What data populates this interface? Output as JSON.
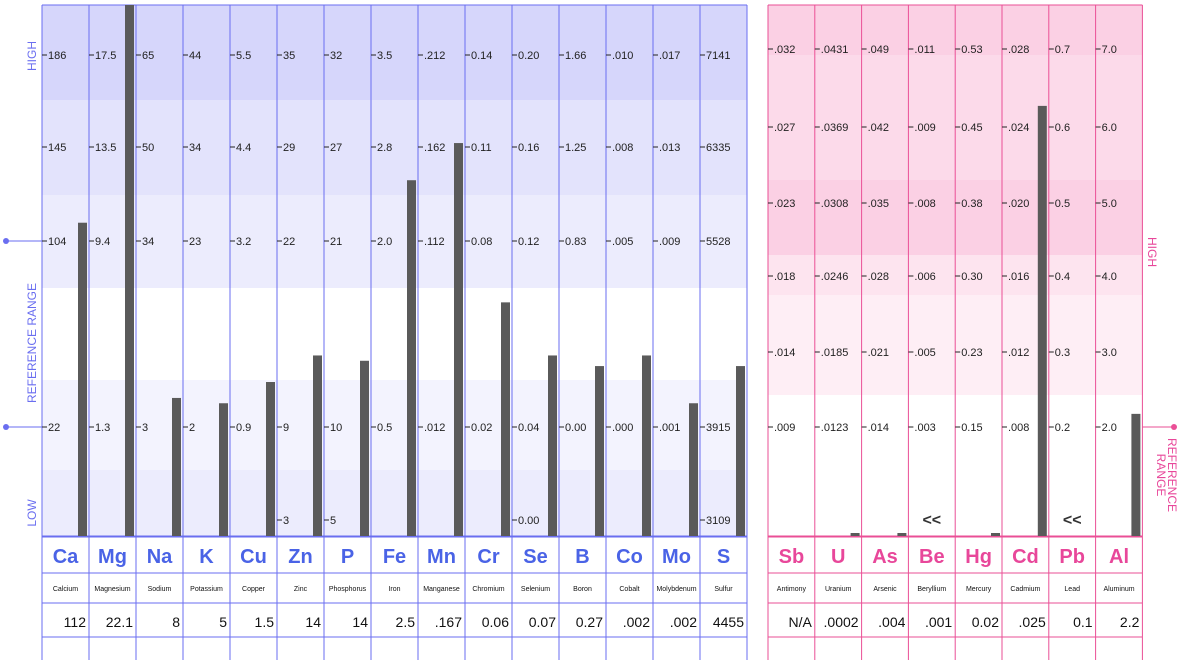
{
  "chart_data": [
    {
      "type": "bar",
      "group": "nutrient",
      "side_labels": {
        "high": "HIGH",
        "reference": "REFERENCE   RANGE",
        "low": "LOW"
      },
      "columns": [
        {
          "symbol": "Ca",
          "name": "Calcium",
          "value": "112",
          "ticks": [
            "186",
            "145",
            "104",
            "22"
          ],
          "level": 0.59
        },
        {
          "symbol": "Mg",
          "name": "Magnesium",
          "value": "22.1",
          "ticks": [
            "17.5",
            "13.5",
            "9.4",
            "1.3"
          ],
          "level": 1.0
        },
        {
          "symbol": "Na",
          "name": "Sodium",
          "value": "8",
          "ticks": [
            "65",
            "50",
            "34",
            "3"
          ],
          "level": 0.26
        },
        {
          "symbol": "K",
          "name": "Potassium",
          "value": "5",
          "ticks": [
            "44",
            "34",
            "23",
            "2"
          ],
          "level": 0.25
        },
        {
          "symbol": "Cu",
          "name": "Copper",
          "value": "1.5",
          "ticks": [
            "5.5",
            "4.4",
            "3.2",
            "0.9"
          ],
          "level": 0.29
        },
        {
          "symbol": "Zn",
          "name": "Zinc",
          "value": "14",
          "ticks": [
            "35",
            "29",
            "22",
            "9",
            "3"
          ],
          "level": 0.34
        },
        {
          "symbol": "P",
          "name": "Phosphorus",
          "value": "14",
          "ticks": [
            "32",
            "27",
            "21",
            "10",
            "5"
          ],
          "level": 0.33
        },
        {
          "symbol": "Fe",
          "name": "Iron",
          "value": "2.5",
          "ticks": [
            "3.5",
            "2.8",
            "2.0",
            "0.5"
          ],
          "level": 0.67
        },
        {
          "symbol": "Mn",
          "name": "Manganese",
          "value": ".167",
          "ticks": [
            ".212",
            ".162",
            ".112",
            ".012"
          ],
          "level": 0.74
        },
        {
          "symbol": "Cr",
          "name": "Chromium",
          "value": "0.06",
          "ticks": [
            "0.14",
            "0.11",
            "0.08",
            "0.02"
          ],
          "level": 0.44
        },
        {
          "symbol": "Se",
          "name": "Selenium",
          "value": "0.07",
          "ticks": [
            "0.20",
            "0.16",
            "0.12",
            "0.04",
            "0.00"
          ],
          "level": 0.34
        },
        {
          "symbol": "B",
          "name": "Boron",
          "value": "0.27",
          "ticks": [
            "1.66",
            "1.25",
            "0.83",
            "0.00"
          ],
          "level": 0.32
        },
        {
          "symbol": "Co",
          "name": "Cobalt",
          "value": ".002",
          "ticks": [
            ".010",
            ".008",
            ".005",
            ".000"
          ],
          "level": 0.34
        },
        {
          "symbol": "Mo",
          "name": "Molybdenum",
          "value": ".002",
          "ticks": [
            ".017",
            ".013",
            ".009",
            ".001"
          ],
          "level": 0.25
        },
        {
          "symbol": "S",
          "name": "Sulfur",
          "value": "4455",
          "ticks": [
            "7141",
            "6335",
            "5528",
            "3915",
            "3109"
          ],
          "level": 0.32
        }
      ]
    },
    {
      "type": "bar",
      "group": "toxic",
      "side_labels": {
        "high": "HIGH",
        "reference": "REFERENCE RANGE"
      },
      "columns": [
        {
          "symbol": "Sb",
          "name": "Antimony",
          "value": "N/A",
          "ticks": [
            ".032",
            ".027",
            ".023",
            ".018",
            ".014",
            ".009"
          ],
          "level": 0.0
        },
        {
          "symbol": "U",
          "name": "Uranium",
          "value": ".0002",
          "ticks": [
            ".0431",
            ".0369",
            ".0308",
            ".0246",
            ".0185",
            ".0123"
          ],
          "level": 0.004
        },
        {
          "symbol": "As",
          "name": "Arsenic",
          "value": ".004",
          "ticks": [
            ".049",
            ".042",
            ".035",
            ".028",
            ".021",
            ".014"
          ],
          "level": 0.004
        },
        {
          "symbol": "Be",
          "name": "Beryllium",
          "value": ".001",
          "ticks": [
            ".011",
            ".009",
            ".008",
            ".006",
            ".005",
            ".003"
          ],
          "level": 0.0,
          "below_marker": "<<"
        },
        {
          "symbol": "Hg",
          "name": "Mercury",
          "value": "0.02",
          "ticks": [
            "0.53",
            "0.45",
            "0.38",
            "0.30",
            "0.23",
            "0.15"
          ],
          "level": 0.004
        },
        {
          "symbol": "Cd",
          "name": "Cadmium",
          "value": ".025",
          "ticks": [
            ".028",
            ".024",
            ".020",
            ".016",
            ".012",
            ".008"
          ],
          "level": 0.81
        },
        {
          "symbol": "Pb",
          "name": "Lead",
          "value": "0.1",
          "ticks": [
            "0.7",
            "0.6",
            "0.5",
            "0.4",
            "0.3",
            "0.2"
          ],
          "level": 0.0,
          "below_marker": "<<"
        },
        {
          "symbol": "Al",
          "name": "Aluminum",
          "value": "2.2",
          "ticks": [
            "7.0",
            "6.0",
            "5.0",
            "4.0",
            "3.0",
            "2.0"
          ],
          "level": 0.23
        }
      ]
    }
  ],
  "colors": {
    "nutrient_accent": "#4a63e6",
    "toxic_accent": "#e8479a",
    "bar": "#5a5a5a"
  }
}
